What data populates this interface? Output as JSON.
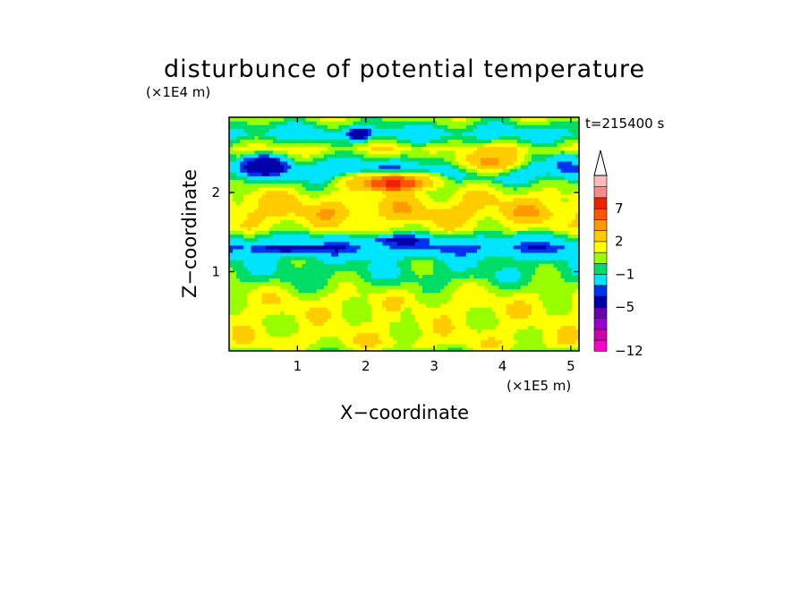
{
  "chart_data": {
    "type": "heatmap",
    "title": "disturbunce of potential temperature",
    "xlabel": "X−coordinate",
    "ylabel": "Z−coordinate",
    "x_unit": "(×1E5 m)",
    "y_unit": "(×1E4 m)",
    "time_label": "t=215400 s",
    "xlim": [
      0,
      5.12
    ],
    "ylim": [
      0,
      2.95
    ],
    "x_ticks": [
      1,
      2,
      3,
      4,
      5
    ],
    "y_ticks": [
      1,
      2
    ],
    "x_tick_labels": [
      "1",
      "2",
      "3",
      "4",
      "5"
    ],
    "y_tick_labels": [
      "1",
      "2"
    ],
    "colorbar": {
      "levels": [
        -12,
        -11,
        -9,
        -7,
        -5,
        -4,
        -3,
        -1,
        0,
        1,
        2,
        3,
        5,
        7,
        9,
        11
      ],
      "labels": [
        "−12",
        "−5",
        "−1",
        "2",
        "7"
      ],
      "label_values": [
        -12,
        -5,
        -1,
        2,
        7
      ],
      "colors": [
        "#ff00cc",
        "#cc00aa",
        "#9900cc",
        "#6600aa",
        "#0000aa",
        "#0033ee",
        "#00e5ff",
        "#00dd66",
        "#99ff00",
        "#ffff00",
        "#ffcc00",
        "#ff9900",
        "#ff5500",
        "#ee2200",
        "#ff8888",
        "#ffbbbb"
      ],
      "extend": "max"
    },
    "bands": [
      {
        "z": 0.0,
        "value": 0.5
      },
      {
        "z": 0.1,
        "value": 1.5
      },
      {
        "z": 0.35,
        "value": 1.2
      },
      {
        "z": 0.55,
        "value": 1.5
      },
      {
        "z": 0.7,
        "value": 1.2
      },
      {
        "z": 0.8,
        "value": 0.5
      },
      {
        "z": 0.95,
        "value": -0.5
      },
      {
        "z": 1.15,
        "value": -0.8
      },
      {
        "z": 1.3,
        "value": -3.5
      },
      {
        "z": 1.45,
        "value": -1.0
      },
      {
        "z": 1.55,
        "value": 1.2
      },
      {
        "z": 1.75,
        "value": 2.5
      },
      {
        "z": 1.95,
        "value": 1.8
      },
      {
        "z": 2.1,
        "value": 0.4
      },
      {
        "z": 2.3,
        "value": -3.0
      },
      {
        "z": 2.55,
        "value": 1.5
      },
      {
        "z": 2.75,
        "value": -2.0
      },
      {
        "z": 2.95,
        "value": 0.8
      }
    ],
    "features": [
      {
        "x": 2.4,
        "z": 2.15,
        "rx": 0.95,
        "rz": 0.18,
        "value": 3.5
      },
      {
        "x": 2.4,
        "z": 2.12,
        "rx": 0.45,
        "rz": 0.1,
        "value": 7.5
      },
      {
        "x": 3.8,
        "z": 2.4,
        "rx": 0.7,
        "rz": 0.22,
        "value": 3.2
      },
      {
        "x": 0.5,
        "z": 2.35,
        "rx": 0.45,
        "rz": 0.18,
        "value": -5.0
      },
      {
        "x": 1.9,
        "z": 2.75,
        "rx": 0.25,
        "rz": 0.12,
        "value": -5.0
      },
      {
        "x": 2.5,
        "z": 1.4,
        "rx": 0.55,
        "rz": 0.08,
        "value": -4.5
      },
      {
        "x": 0.9,
        "z": 1.3,
        "rx": 0.6,
        "rz": 0.07,
        "value": -4.5
      },
      {
        "x": 4.9,
        "z": 2.35,
        "rx": 0.3,
        "rz": 0.18,
        "value": -3.2
      },
      {
        "x": 2.6,
        "z": 0.35,
        "rx": 0.12,
        "rz": 0.35,
        "value": 0.2
      }
    ]
  }
}
